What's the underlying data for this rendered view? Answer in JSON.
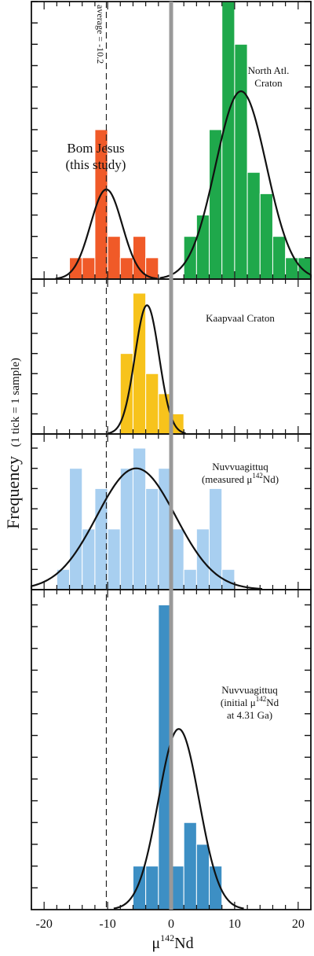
{
  "figure": {
    "ylabel_main": "Frequency",
    "ylabel_note": "(1 tick = 1 sample)",
    "xlabel_mu": "μ",
    "xlabel_sup": "142",
    "xlabel_nd": "Nd",
    "average_label": "average = -10.2"
  },
  "chart_data": [
    {
      "type": "bar",
      "title": "Bom Jesus (this study)",
      "label_lines": [
        "Bom Jesus",
        "(this study)"
      ],
      "color": "#f05a28",
      "bin_width": 2,
      "bins": [
        {
          "x0": -16,
          "count": 1
        },
        {
          "x0": -14,
          "count": 1
        },
        {
          "x0": -12,
          "count": 7
        },
        {
          "x0": -10,
          "count": 2
        },
        {
          "x0": -8,
          "count": 1
        },
        {
          "x0": -6,
          "count": 2
        },
        {
          "x0": -4,
          "count": 1
        }
      ],
      "fit": {
        "mean": -10.2,
        "sd": 2.5,
        "peak": 4.2
      },
      "ylim": [
        0,
        13
      ]
    },
    {
      "type": "bar",
      "title": "North Atl. Craton",
      "label_lines": [
        "North Atl.",
        "Craton"
      ],
      "color": "#1fa84b",
      "bin_width": 2,
      "bins": [
        {
          "x0": 2,
          "count": 2
        },
        {
          "x0": 4,
          "count": 3
        },
        {
          "x0": 6,
          "count": 7
        },
        {
          "x0": 8,
          "count": 13
        },
        {
          "x0": 10,
          "count": 11
        },
        {
          "x0": 12,
          "count": 5
        },
        {
          "x0": 14,
          "count": 4
        },
        {
          "x0": 16,
          "count": 2
        },
        {
          "x0": 18,
          "count": 1
        },
        {
          "x0": 20,
          "count": 1
        }
      ],
      "fit": {
        "mean": 11,
        "sd": 4,
        "peak": 8.8
      },
      "ylim": [
        0,
        13
      ]
    },
    {
      "type": "bar",
      "title": "Kaapvaal Craton",
      "label_lines": [
        "Kaapvaal Craton"
      ],
      "color": "#f7c31c",
      "bin_width": 2,
      "bins": [
        {
          "x0": -8,
          "count": 4
        },
        {
          "x0": -6,
          "count": 7
        },
        {
          "x0": -4,
          "count": 3
        },
        {
          "x0": -2,
          "count": 2
        },
        {
          "x0": 0,
          "count": 1
        }
      ],
      "fit": {
        "mean": -3.8,
        "sd": 1.9,
        "peak": 6.4
      },
      "ylim": [
        0,
        7.7
      ]
    },
    {
      "type": "bar",
      "title": "Nuvvuagittuq (measured μ142Nd)",
      "label_lines": [
        "Nuvvuagittuq",
        "(measured μ",
        "142",
        "Nd)"
      ],
      "color": "#a8cff0",
      "bin_width": 2,
      "bins": [
        {
          "x0": -18,
          "count": 1
        },
        {
          "x0": -16,
          "count": 6
        },
        {
          "x0": -14,
          "count": 3
        },
        {
          "x0": -12,
          "count": 5
        },
        {
          "x0": -10,
          "count": 3
        },
        {
          "x0": -8,
          "count": 6
        },
        {
          "x0": -6,
          "count": 7
        },
        {
          "x0": -4,
          "count": 5
        },
        {
          "x0": -2,
          "count": 6
        },
        {
          "x0": 0,
          "count": 3
        },
        {
          "x0": 2,
          "count": 1
        },
        {
          "x0": 4,
          "count": 3
        },
        {
          "x0": 6,
          "count": 5
        },
        {
          "x0": 8,
          "count": 1
        }
      ],
      "fit": {
        "mean": -5.5,
        "sd": 6.2,
        "peak": 6.0
      },
      "ylim": [
        0,
        7.7
      ]
    },
    {
      "type": "bar",
      "title": "Nuvvuagittuq (initial μ142Nd at 4.31 Ga)",
      "label_lines": [
        "Nuvvuagittuq",
        "(initial μ",
        "142",
        "Nd",
        "at 4.31 Ga)"
      ],
      "color": "#3d8fc4",
      "bin_width": 2,
      "bins": [
        {
          "x0": -6,
          "count": 2
        },
        {
          "x0": -4,
          "count": 2
        },
        {
          "x0": -2,
          "count": 14
        },
        {
          "x0": 0,
          "count": 2
        },
        {
          "x0": 2,
          "count": 4
        },
        {
          "x0": 4,
          "count": 3
        },
        {
          "x0": 6,
          "count": 2
        }
      ],
      "fit": {
        "mean": 1.2,
        "sd": 3.2,
        "peak": 8.3
      },
      "ylim": [
        0,
        14.7
      ]
    }
  ],
  "x_axis": {
    "min": -22,
    "max": 22,
    "ticks": [
      -20,
      -10,
      0,
      10,
      20
    ],
    "tick_labels": [
      "-20",
      "-10",
      "0",
      "10",
      "20"
    ]
  },
  "colors": {
    "zero_line": "#999999",
    "fit_curve": "#111111",
    "bar_edge": "#ffffff",
    "frame": "#111111"
  }
}
